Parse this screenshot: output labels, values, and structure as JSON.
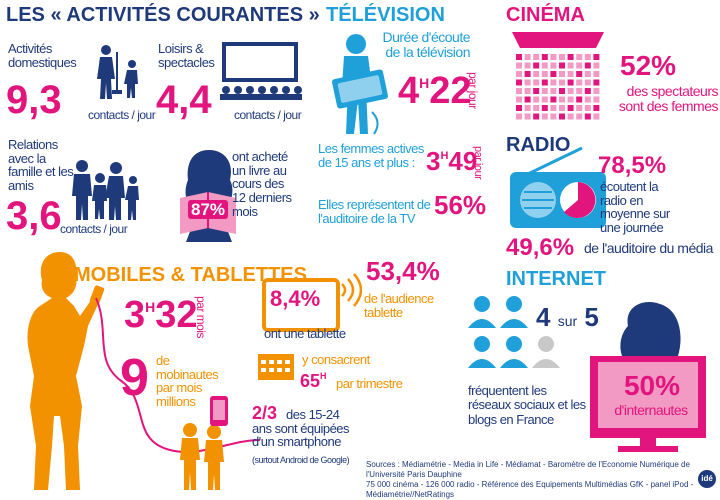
{
  "colors": {
    "navy": "#1f3a7a",
    "magenta": "#e2147d",
    "orange": "#f39200",
    "cyan": "#1fa0d8",
    "pink_light": "#f29ac3"
  },
  "activites": {
    "title": "LES « ACTIVITÉS COURANTES »",
    "domestiques": {
      "label": "Activités domestiques",
      "value": "9,3",
      "unit": "contacts / jour"
    },
    "loisirs": {
      "label": "Loisirs & spectacles",
      "value": "4,4",
      "unit": "contacts / jour"
    },
    "relations": {
      "label": "Relations avec la famille et les amis",
      "value": "3,6",
      "unit": "contacts / jour"
    },
    "livre": {
      "percent": "87%",
      "label": "ont acheté un livre au cours des 12 derniers mois"
    }
  },
  "television": {
    "title": "TÉLÉVISION",
    "duree_label": "Durée d'écoute de la télévision",
    "duree_h": "4",
    "duree_sup": "H",
    "duree_min": "22",
    "duree_unit": "par jour",
    "actives_label": "Les femmes actives de 15 ans et plus :",
    "actives_h": "3",
    "actives_sup": "H",
    "actives_min": "49",
    "actives_unit": "par jour",
    "auditoire_label": "Elles représentent de l'auditoire de la TV",
    "auditoire_value": "56%"
  },
  "cinema": {
    "title": "CINÉMA",
    "value": "52%",
    "label": "des spectateurs sont des femmes"
  },
  "radio": {
    "title": "RADIO",
    "ecoute_value": "78,5%",
    "ecoute_label": "écoutent la radio en moyenne sur une journée",
    "auditoire_value": "49,6%",
    "auditoire_label": "de l'auditoire du média"
  },
  "mobiles": {
    "title": "MOBILES & TABLETTES",
    "duree_h": "3",
    "duree_sup": "H",
    "duree_min": "32",
    "duree_unit": "par mois",
    "mobinautes_value": "9",
    "mobinautes_label": "de mobinautes par mois",
    "mobinautes_unit": "millions",
    "tablette_value": "8,4%",
    "tablette_label": "ont une tablette",
    "audience_value": "53,4%",
    "audience_label": "de l'audience tablette",
    "consacrent_label": "y consacrent",
    "consacrent_h": "65",
    "consacrent_sup": "H",
    "consacrent_unit": "par trimestre",
    "smartphone_value": "2/3",
    "smartphone_label": "des 15-24 ans sont équipées d'un smartphone",
    "smartphone_note": "(surtout Android de Google)"
  },
  "internet": {
    "title": "INTERNET",
    "ratio_a": "4",
    "ratio_mid": "sur",
    "ratio_b": "5",
    "label": "fréquentent les réseaux sociaux et les blogs en France",
    "value": "50%",
    "value_label": "d'internautes"
  },
  "sources": {
    "line1": "Sources : Médiamétrie - Media in Life - Médiamat - Baromètre de l'Economie Numérique de l'Université Paris Dauphine",
    "line2": "75 000 cinéma - 126 000 radio - Référence des Equipements Multimédias GfK - panel iPod - Médiamétrie//NetRatings"
  },
  "logo": {
    "text": "idé"
  }
}
